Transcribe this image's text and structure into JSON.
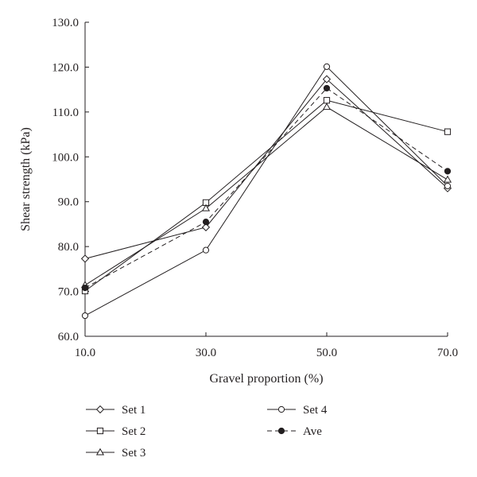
{
  "chart_data": {
    "type": "line",
    "xlabel": "Gravel proportion (%)",
    "ylabel": "Shear strength (kPa)",
    "x": [
      10,
      30,
      50,
      70
    ],
    "x_tick_labels": [
      "10.0",
      "30.0",
      "50.0",
      "70.0"
    ],
    "ylim": [
      60,
      130
    ],
    "y_ticks": [
      60,
      70,
      80,
      90,
      100,
      110,
      120,
      130
    ],
    "y_tick_labels": [
      "60.0",
      "70.0",
      "80.0",
      "90.0",
      "100.0",
      "110.0",
      "120.0",
      "130.0"
    ],
    "grid": false,
    "legend_position": "bottom",
    "series": [
      {
        "name": "Set 1",
        "marker": "diamond",
        "dash": "solid",
        "values": [
          77.3,
          84.3,
          117.3,
          93.0
        ]
      },
      {
        "name": "Set 2",
        "marker": "square",
        "dash": "solid",
        "values": [
          70.1,
          89.8,
          112.6,
          105.6
        ]
      },
      {
        "name": "Set 3",
        "marker": "triangle",
        "dash": "solid",
        "values": [
          71.4,
          88.5,
          111.1,
          94.9
        ]
      },
      {
        "name": "Set 4",
        "marker": "circle",
        "dash": "solid",
        "values": [
          64.6,
          79.2,
          120.1,
          93.5
        ]
      },
      {
        "name": "Ave",
        "marker": "filled-circle",
        "dash": "dashed",
        "values": [
          70.8,
          85.5,
          115.3,
          96.8
        ]
      }
    ]
  }
}
